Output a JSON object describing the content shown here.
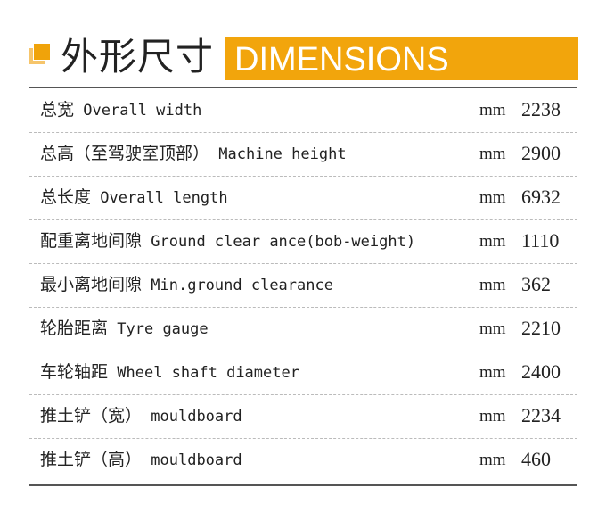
{
  "header": {
    "title_cn": "外形尺寸",
    "title_en": "DIMENSIONS",
    "accent": "#f2a50c"
  },
  "rows": [
    {
      "cn": "总宽",
      "en": "Overall width",
      "unit": "mm",
      "value": "2238"
    },
    {
      "cn": "总高（至驾驶室顶部）",
      "en": "Machine height",
      "unit": "mm",
      "value": "2900"
    },
    {
      "cn": "总长度",
      "en": "Overall length",
      "unit": "mm",
      "value": "6932"
    },
    {
      "cn": "配重离地间隙",
      "en": "Ground clear ance(bob-weight)",
      "unit": "mm",
      "value": "1110"
    },
    {
      "cn": "最小离地间隙",
      "en": "Min.ground clearance",
      "unit": "mm",
      "value": "362"
    },
    {
      "cn": "轮胎距离",
      "en": "Tyre gauge",
      "unit": "mm",
      "value": "2210"
    },
    {
      "cn": "车轮轴距",
      "en": "Wheel shaft diameter",
      "unit": "mm",
      "value": "2400"
    },
    {
      "cn": "推土铲（宽）",
      "en": "mouldboard",
      "unit": "mm",
      "value": "2234"
    },
    {
      "cn": "推土铲（高）",
      "en": "mouldboard",
      "unit": "mm",
      "value": "460"
    }
  ]
}
